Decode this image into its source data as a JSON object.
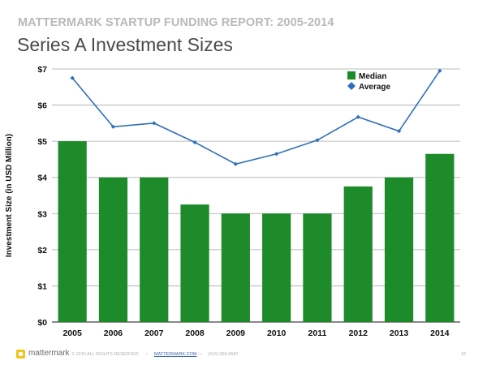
{
  "header": {
    "report_title": "MATTERMARK STARTUP FUNDING REPORT: 2005-2014",
    "slide_title": "Series A Investment Sizes"
  },
  "chart_data": {
    "type": "bar",
    "title": "Series A Investment Sizes",
    "xlabel": "",
    "ylabel": "Investment Size (in USD Million)",
    "categories": [
      "2005",
      "2006",
      "2007",
      "2008",
      "2009",
      "2010",
      "2011",
      "2012",
      "2013",
      "2014"
    ],
    "series": [
      {
        "name": "Median",
        "type": "bar",
        "color": "#1e8b2b",
        "values": [
          5.0,
          4.0,
          4.0,
          3.25,
          3.0,
          3.0,
          3.0,
          3.75,
          4.0,
          4.65
        ]
      },
      {
        "name": "Average",
        "type": "line",
        "color": "#2d6fbb",
        "values": [
          6.75,
          5.4,
          5.5,
          4.97,
          4.37,
          4.65,
          5.03,
          5.67,
          5.28,
          6.95
        ]
      }
    ],
    "ylim": [
      0,
      7
    ],
    "yticks": [
      0,
      1,
      2,
      3,
      4,
      5,
      6,
      7
    ],
    "ytick_labels": [
      "$0",
      "$1",
      "$2",
      "$3",
      "$4",
      "$5",
      "$6",
      "$7"
    ],
    "grid": true,
    "legend_position": "top-right"
  },
  "footer": {
    "logo_text": "mattermark",
    "copyright": "© 2015 ALL RIGHTS RESERVED",
    "sep1": "•",
    "link": "MATTERMARK.COM",
    "sep2": "•",
    "phone": "(415) 366-6587",
    "page_number": "16"
  }
}
